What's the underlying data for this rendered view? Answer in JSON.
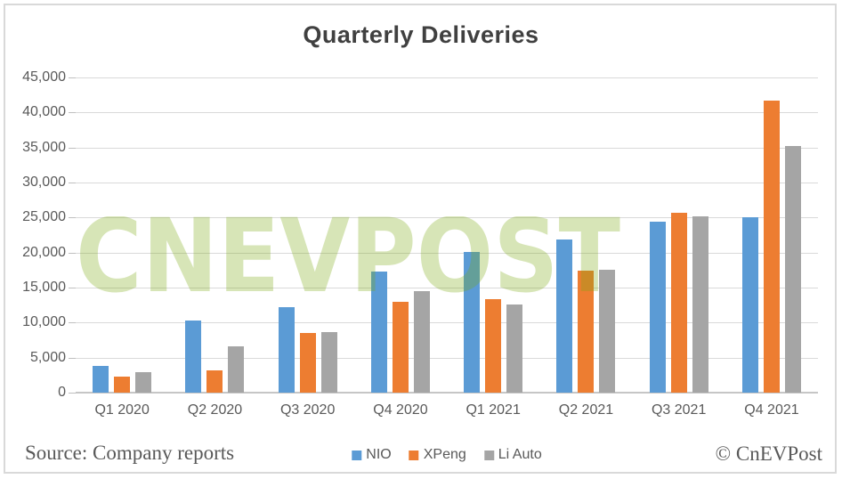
{
  "footer": {
    "source": "Source: Company reports",
    "copyright": "© CnEVPost"
  },
  "watermark": {
    "text": "CNEVPOST",
    "color": "rgba(124,169,16,0.30)"
  },
  "style": {
    "gridline_color": "#d9d9d9",
    "axis_color": "#c6c6c6",
    "title_color": "#404040",
    "label_color": "#595959"
  },
  "chart_data": {
    "type": "bar",
    "title": "Quarterly Deliveries",
    "categories": [
      "Q1 2020",
      "Q2 2020",
      "Q3 2020",
      "Q4 2020",
      "Q1 2021",
      "Q2 2021",
      "Q3 2021",
      "Q4 2021"
    ],
    "series": [
      {
        "name": "NIO",
        "color": "#5B9BD5",
        "values": [
          3838,
          10331,
          12206,
          17353,
          20060,
          21896,
          24439,
          25034
        ]
      },
      {
        "name": "XPeng",
        "color": "#ED7D31",
        "values": [
          2271,
          3228,
          8578,
          12964,
          13340,
          17398,
          25666,
          41751
        ]
      },
      {
        "name": "Li Auto",
        "color": "#A5A5A5",
        "values": [
          2896,
          6604,
          8660,
          14464,
          12579,
          17575,
          25116,
          35221
        ]
      }
    ],
    "xlabel": "",
    "ylabel": "",
    "ylim": [
      0,
      45000
    ],
    "ytick_step": 5000,
    "grid": "horizontal",
    "legend_position": "bottom-center"
  }
}
